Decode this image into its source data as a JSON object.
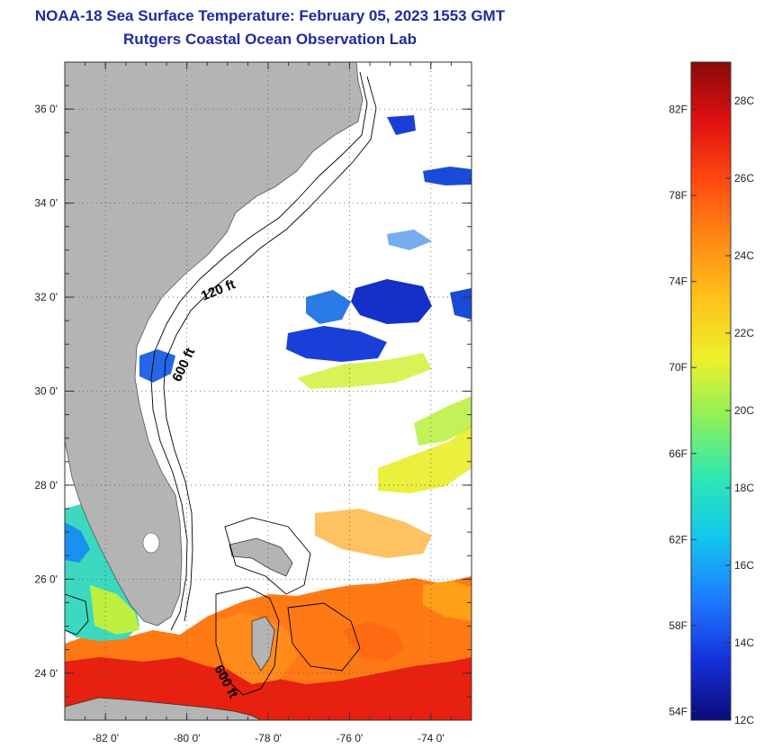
{
  "header": {
    "title": "NOAA-18 Sea Surface Temperature:  February 05, 2023 1553 GMT",
    "subtitle": "Rutgers Coastal Ocean Observation Lab"
  },
  "map": {
    "lon_range": [
      -83,
      -73
    ],
    "lat_range": [
      23,
      37
    ],
    "lon_ticks": [
      {
        "value": -82,
        "label": "-82 0'"
      },
      {
        "value": -80,
        "label": "-80 0'"
      },
      {
        "value": -78,
        "label": "-78 0'"
      },
      {
        "value": -76,
        "label": "-76 0'"
      },
      {
        "value": -74,
        "label": "-74 0'"
      }
    ],
    "lat_ticks": [
      {
        "value": 36,
        "label": "36 0'"
      },
      {
        "value": 34,
        "label": "34 0'"
      },
      {
        "value": 32,
        "label": "32 0'"
      },
      {
        "value": 30,
        "label": "30 0'"
      },
      {
        "value": 28,
        "label": "28 0'"
      },
      {
        "value": 26,
        "label": "26 0'"
      },
      {
        "value": 24,
        "label": "24 0'"
      }
    ],
    "grid": "dotted",
    "land_color": "#b4b4b4",
    "depth_labels": [
      "120 ft",
      "600 ft",
      "600 ft"
    ]
  },
  "colorbar": {
    "fahrenheit": [
      {
        "value": 54,
        "label": "54F"
      },
      {
        "value": 58,
        "label": "58F"
      },
      {
        "value": 62,
        "label": "62F"
      },
      {
        "value": 66,
        "label": "66F"
      },
      {
        "value": 70,
        "label": "70F"
      },
      {
        "value": 74,
        "label": "74F"
      },
      {
        "value": 78,
        "label": "78F"
      },
      {
        "value": 82,
        "label": "82F"
      }
    ],
    "celsius": [
      {
        "value": 12,
        "label": "12C"
      },
      {
        "value": 14,
        "label": "14C"
      },
      {
        "value": 16,
        "label": "16C"
      },
      {
        "value": 18,
        "label": "18C"
      },
      {
        "value": 20,
        "label": "20C"
      },
      {
        "value": 22,
        "label": "22C"
      },
      {
        "value": 24,
        "label": "24C"
      },
      {
        "value": 26,
        "label": "26C"
      },
      {
        "value": 28,
        "label": "28C"
      }
    ],
    "range_c": [
      12,
      29
    ],
    "stops": [
      "#0a0a7a",
      "#1530d8",
      "#1e78ff",
      "#12c8ee",
      "#2ee8b0",
      "#8ef05a",
      "#eef02a",
      "#ffc21a",
      "#ff8a14",
      "#ff4a10",
      "#e01010",
      "#8a0a0a"
    ]
  }
}
